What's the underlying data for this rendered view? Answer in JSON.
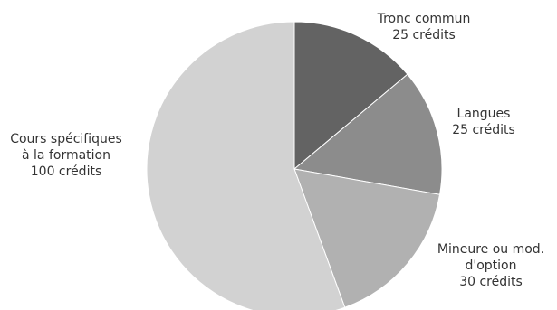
{
  "chart_data": {
    "type": "pie",
    "title": "",
    "slices": [
      {
        "lines": [
          "Tronc commun",
          "25 crédits"
        ],
        "value": 25,
        "color": "#636363"
      },
      {
        "lines": [
          "Langues",
          "25 crédits"
        ],
        "value": 25,
        "color": "#8c8c8c"
      },
      {
        "lines": [
          "Mineure ou mod.",
          "d'option",
          "30 crédits"
        ],
        "value": 30,
        "color": "#b1b1b1"
      },
      {
        "lines": [
          "Cours spécifiques",
          "à la formation",
          "100 crédits"
        ],
        "value": 100,
        "color": "#d2d2d2"
      }
    ],
    "legend": "none",
    "labels": "outside"
  }
}
